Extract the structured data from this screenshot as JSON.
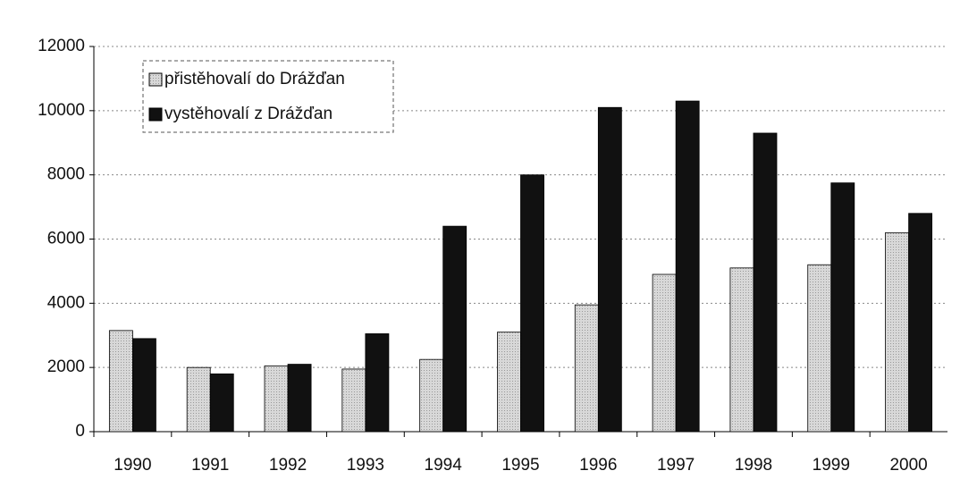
{
  "chart_data": {
    "type": "bar",
    "categories": [
      "1990",
      "1991",
      "1992",
      "1993",
      "1994",
      "1995",
      "1996",
      "1997",
      "1998",
      "1999",
      "2000"
    ],
    "series": [
      {
        "name": "přistěhovalí do Drážďan",
        "color": "#cfcfcf",
        "values": [
          3150,
          2000,
          2050,
          1950,
          2250,
          3100,
          3950,
          4900,
          5100,
          5200,
          6200
        ]
      },
      {
        "name": "vystěhovalí z Drážďan",
        "color": "#111111",
        "values": [
          2900,
          1800,
          2100,
          3050,
          6400,
          8000,
          10100,
          10300,
          9300,
          7750,
          6800
        ]
      }
    ],
    "ylim": [
      0,
      12000
    ],
    "yticks": [
      0,
      2000,
      4000,
      6000,
      8000,
      10000,
      12000
    ],
    "grid": true,
    "legend": "upper left"
  }
}
